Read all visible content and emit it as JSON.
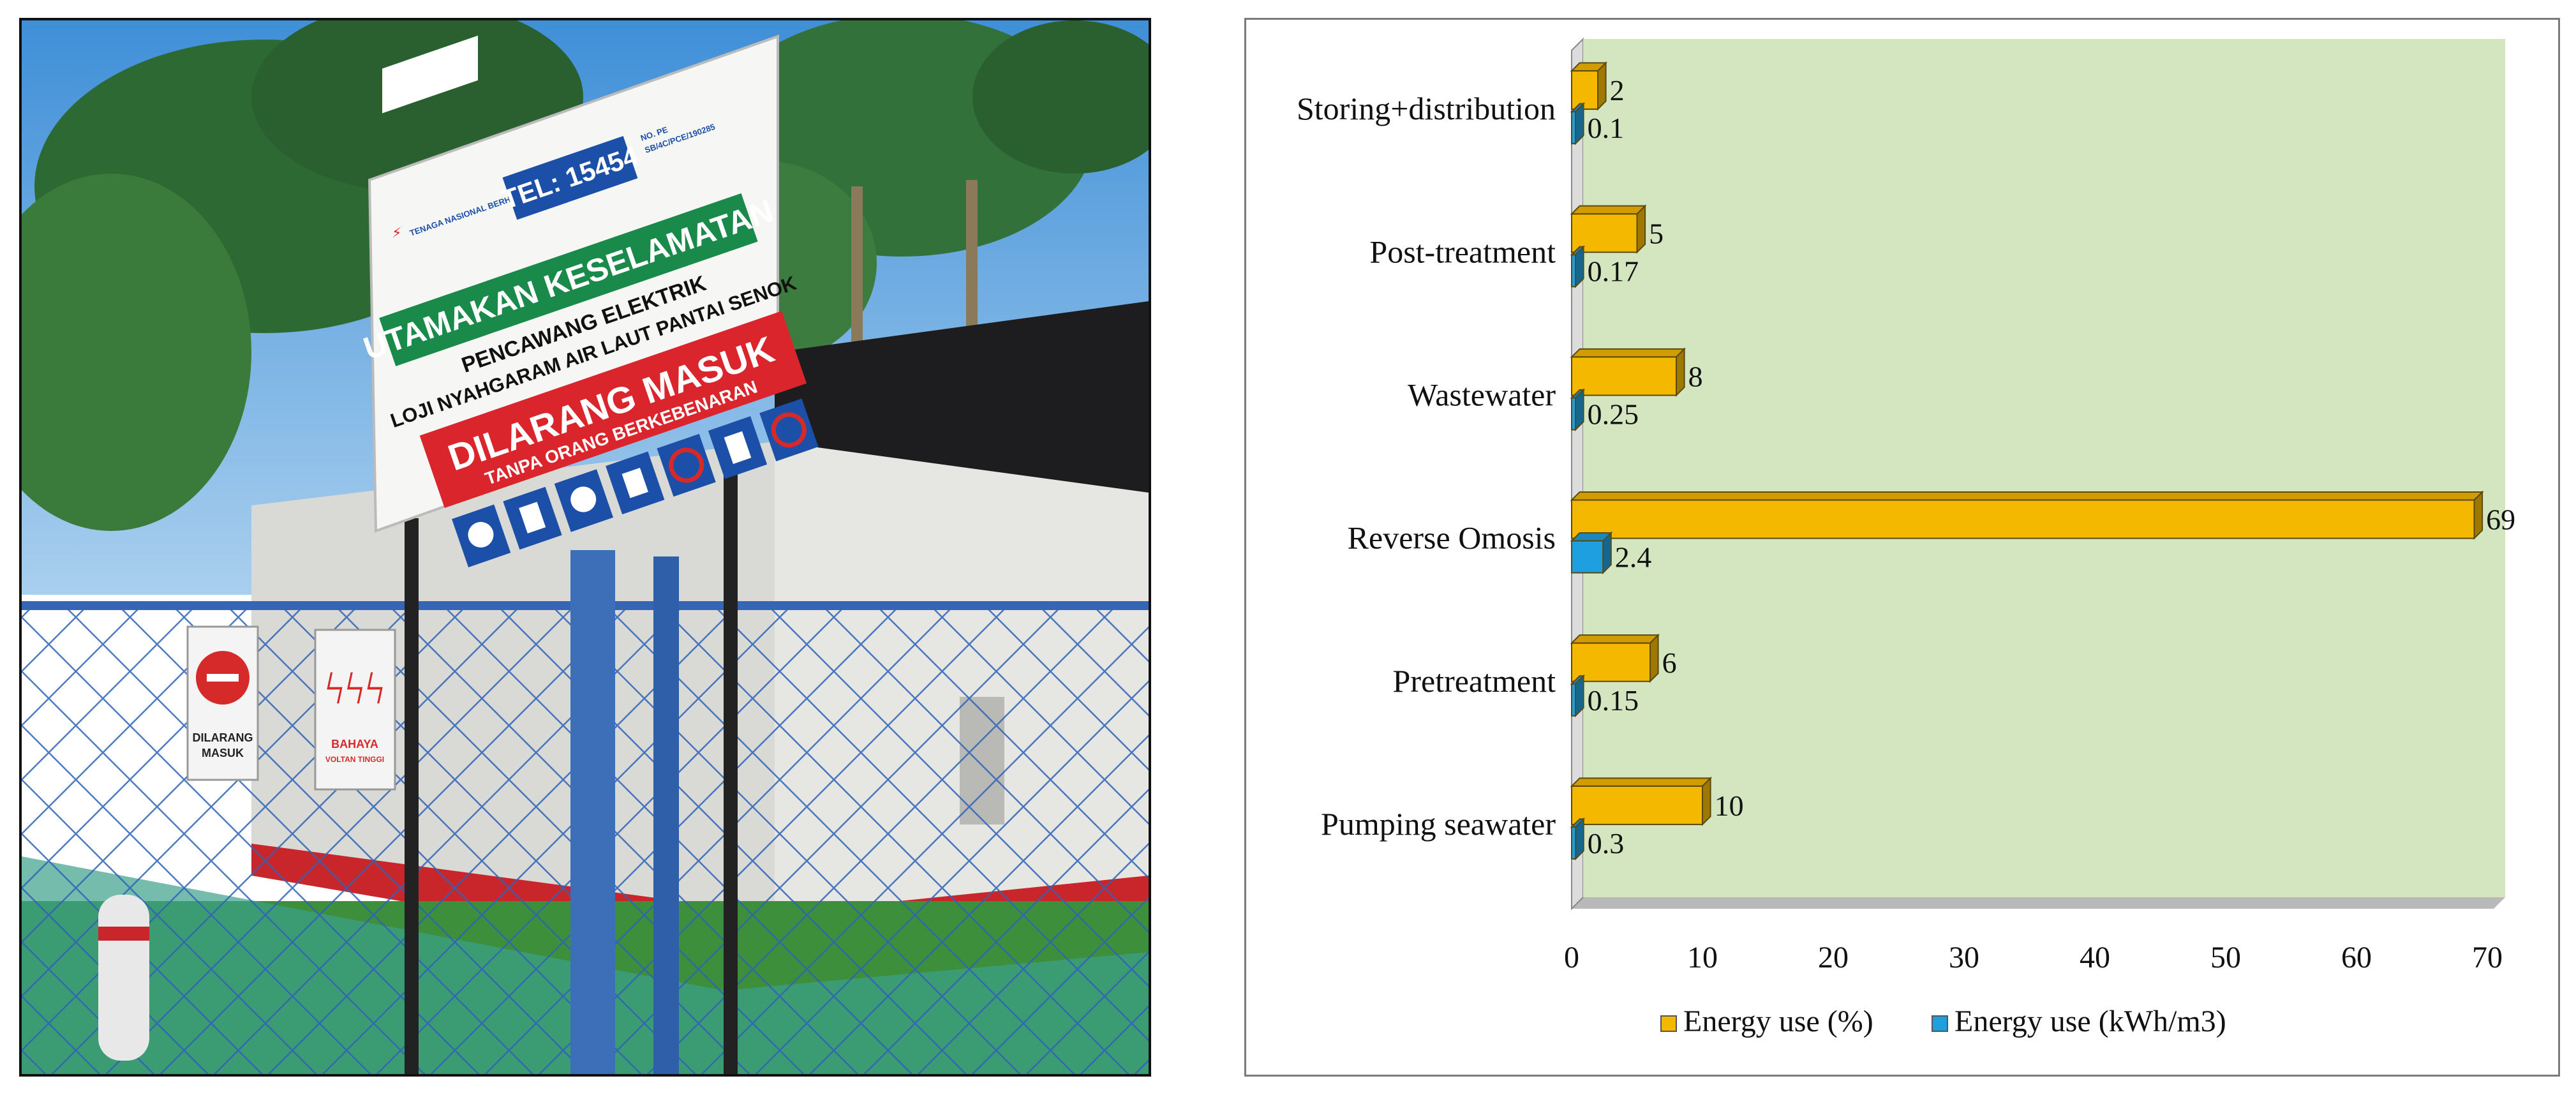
{
  "photo": {
    "sign": {
      "tel": "TEL: 15454",
      "company": "TENAGA NASIONAL BERHAD",
      "ref_line1": "NO. PE",
      "ref_line2": "SB/4C/PCE/190285",
      "headline": "UTAMAKAN KESELAMATAN",
      "subline1": "PENCAWANG ELEKTRIK",
      "subline2": "LOJI NYAHGARAM AIR LAUT PANTAI SENOK",
      "warning": "DILARANG MASUK",
      "warning_sub": "TANPA ORANG BERKEBENARAN"
    },
    "small_signs": {
      "no_entry_1": "DILARANG",
      "no_entry_2": "MASUK",
      "danger_1": "BAHAYA",
      "danger_2": "VOLTAN TINGGI"
    },
    "colors": {
      "sky": "#5fa6e0",
      "foliage": "#2f6b34",
      "sign_green": "#1a8a4a",
      "sign_red": "#d9252b",
      "sign_blue": "#1b4fa8",
      "fence": "#2f63b8"
    }
  },
  "chart_data": {
    "type": "bar",
    "orientation": "horizontal",
    "style": "3d",
    "categories": [
      "Storing+distribution",
      "Post-treatment",
      "Wastewater",
      "Reverse Omosis",
      "Pretreatment",
      "Pumping seawater"
    ],
    "series": [
      {
        "name": "Energy use (%)",
        "values": [
          2,
          5,
          8,
          69,
          6,
          10
        ],
        "labels": [
          "2",
          "5",
          "8",
          "69",
          "6",
          "10"
        ],
        "color": "#f5b800"
      },
      {
        "name": "Energy use (kWh/m3)",
        "values": [
          0.1,
          0.17,
          0.25,
          2.4,
          0.15,
          0.3
        ],
        "labels": [
          "0.1",
          "0.17",
          "0.25",
          "2.4",
          "0.15",
          "0.3"
        ],
        "color": "#1e9fe0"
      }
    ],
    "xlim": [
      0,
      70
    ],
    "xticks": [
      "0",
      "10",
      "20",
      "30",
      "40",
      "50",
      "60",
      "70"
    ],
    "xtick_values": [
      0,
      10,
      20,
      30,
      40,
      50,
      60,
      70
    ],
    "title": "",
    "xlabel": "",
    "ylabel": "",
    "plot_background": "#d4e6bf",
    "legend_position": "bottom"
  }
}
